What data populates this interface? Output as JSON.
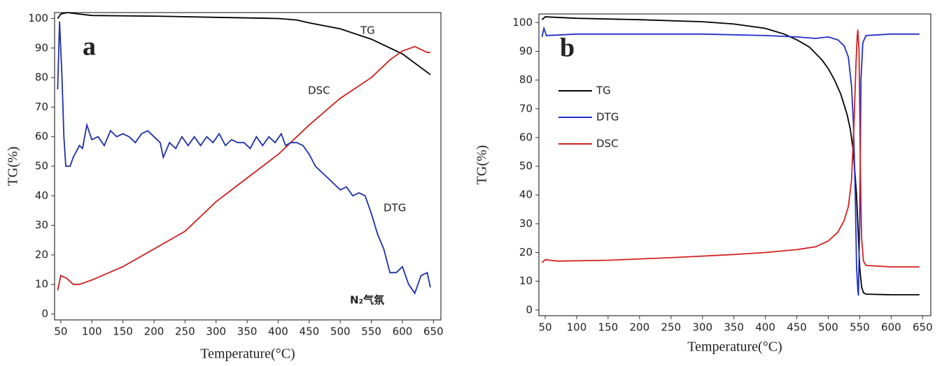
{
  "chart_data": [
    {
      "type": "line",
      "xlabel": "Temperature(°C)",
      "ylabel": "TG(%)",
      "annotations": [
        "a",
        "N₂气氛"
      ],
      "legend": false,
      "xlim": [
        40,
        662
      ],
      "ylim": [
        -2,
        102
      ],
      "xticks": [
        50,
        100,
        150,
        200,
        250,
        300,
        350,
        400,
        450,
        500,
        550,
        600,
        650
      ],
      "yticks": [
        0,
        10,
        20,
        30,
        40,
        50,
        60,
        70,
        80,
        90,
        100
      ],
      "series": [
        {
          "name": "TG",
          "color": "#000000",
          "x": [
            45,
            50,
            60,
            100,
            200,
            300,
            400,
            430,
            450,
            500,
            550,
            600,
            645
          ],
          "values": [
            100,
            101.5,
            102,
            101,
            100.8,
            100.4,
            100,
            99.5,
            98.5,
            96.5,
            93,
            88,
            81
          ]
        },
        {
          "name": "DSC",
          "color": "#cc1f1f",
          "x": [
            45,
            50,
            60,
            70,
            80,
            100,
            150,
            200,
            250,
            300,
            350,
            400,
            430,
            450,
            500,
            550,
            580,
            600,
            620,
            640,
            645
          ],
          "values": [
            8,
            13,
            12,
            10,
            10,
            11.5,
            16,
            22,
            28,
            38,
            46,
            54,
            60,
            64,
            73,
            80,
            86,
            89,
            90.5,
            88.5,
            88.5
          ]
        },
        {
          "name": "DTG",
          "color": "#1f2fa8",
          "x": [
            45,
            48,
            52,
            55,
            58,
            65,
            70,
            80,
            85,
            92,
            100,
            110,
            120,
            130,
            140,
            150,
            160,
            170,
            180,
            190,
            200,
            210,
            215,
            225,
            235,
            245,
            255,
            265,
            275,
            285,
            295,
            305,
            315,
            325,
            335,
            345,
            355,
            365,
            375,
            385,
            395,
            405,
            412,
            420,
            430,
            440,
            450,
            460,
            470,
            480,
            490,
            500,
            510,
            520,
            530,
            540,
            550,
            560,
            570,
            580,
            590,
            600,
            610,
            620,
            630,
            640,
            645
          ],
          "values": [
            76,
            99,
            80,
            60,
            50,
            50,
            53,
            57,
            56,
            64,
            59,
            60,
            57,
            62,
            60,
            61,
            60,
            58,
            61,
            62,
            60,
            58,
            53,
            58,
            56,
            60,
            57,
            60,
            57,
            60,
            58,
            61,
            57,
            59,
            58,
            58,
            56,
            60,
            57,
            60,
            58,
            61,
            57,
            58,
            58,
            57,
            54,
            50,
            48,
            46,
            44,
            42,
            43,
            40,
            41,
            40,
            34,
            27,
            22,
            14,
            14,
            16,
            10,
            7,
            13,
            14,
            9
          ]
        }
      ]
    },
    {
      "type": "line",
      "xlabel": "Temperature(°C)",
      "ylabel": "TG(%)",
      "annotations": [
        "b"
      ],
      "legend": "upper left",
      "xlim": [
        40,
        663
      ],
      "ylim": [
        -2,
        103
      ],
      "xticks": [
        50,
        100,
        150,
        200,
        250,
        300,
        350,
        400,
        450,
        500,
        550,
        600,
        650
      ],
      "yticks": [
        0,
        10,
        20,
        30,
        40,
        50,
        60,
        70,
        80,
        90,
        100
      ],
      "series": [
        {
          "name": "TG",
          "color": "#000000",
          "x": [
            45,
            50,
            100,
            200,
            300,
            350,
            400,
            430,
            450,
            470,
            490,
            500,
            510,
            520,
            530,
            535,
            540,
            545,
            548,
            550,
            553,
            556,
            560,
            600,
            645
          ],
          "values": [
            101,
            102,
            101.5,
            101,
            100.3,
            99.5,
            98,
            96,
            94,
            91.5,
            87,
            84,
            80,
            75,
            68,
            63,
            55,
            40,
            25,
            15,
            8,
            6,
            5.5,
            5.3,
            5.3
          ]
        },
        {
          "name": "DTG",
          "color": "#1f2fc8",
          "x": [
            45,
            48,
            52,
            100,
            200,
            300,
            400,
            450,
            480,
            500,
            515,
            525,
            532,
            537,
            540,
            543,
            545,
            547,
            548,
            550,
            552,
            555,
            560,
            600,
            645
          ],
          "values": [
            95,
            98,
            95.5,
            96,
            96,
            96,
            95.5,
            95,
            94.5,
            95,
            94,
            92,
            88,
            78,
            65,
            40,
            15,
            7,
            5,
            30,
            80,
            93,
            95.5,
            96,
            96
          ]
        },
        {
          "name": "DSC",
          "color": "#d42020",
          "x": [
            45,
            50,
            70,
            150,
            250,
            350,
            400,
            450,
            480,
            500,
            515,
            525,
            532,
            537,
            541,
            544,
            546,
            547,
            549,
            551,
            553,
            556,
            560,
            600,
            645
          ],
          "values": [
            16.5,
            17.5,
            17,
            17.3,
            18.2,
            19.3,
            20,
            21,
            22,
            24,
            27,
            31,
            36,
            45,
            65,
            85,
            95,
            97.5,
            90,
            50,
            25,
            17,
            15.5,
            15,
            15
          ]
        }
      ]
    }
  ]
}
